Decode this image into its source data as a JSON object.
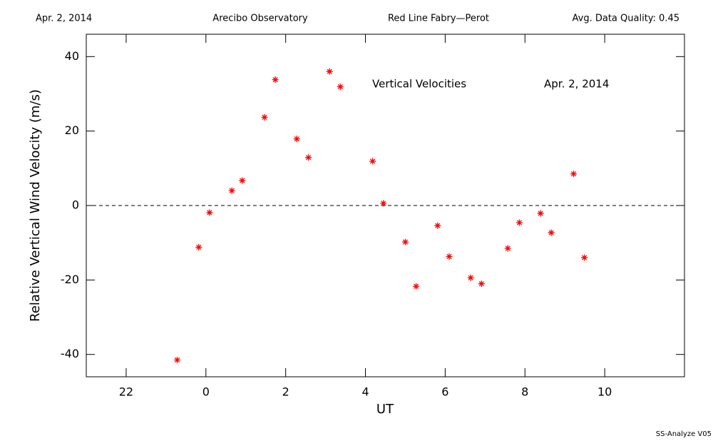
{
  "chart_data": {
    "type": "scatter",
    "header": [
      "Apr. 2, 2014",
      "Arecibo Observatory",
      "Red Line Fabry—Perot",
      "Avg. Data Quality: 0.45"
    ],
    "annotations": [
      "Vertical Velocities",
      "Apr. 2, 2014"
    ],
    "footer": "SS-Analyze V05",
    "xlabel": "UT",
    "ylabel": "Relative Vertical Wind Velocity (m/s)",
    "color": "#ff0000",
    "hline": 0,
    "x": [
      -0.72,
      -0.18,
      0.09,
      0.65,
      0.91,
      1.47,
      1.74,
      2.28,
      2.57,
      3.1,
      3.37,
      4.18,
      4.45,
      5.0,
      5.27,
      5.81,
      6.1,
      6.64,
      6.91,
      7.57,
      7.86,
      8.39,
      8.66,
      9.22,
      9.49
    ],
    "values": [
      -41.5,
      -11.2,
      -1.9,
      4.0,
      6.7,
      23.7,
      33.8,
      17.9,
      12.9,
      36.0,
      31.9,
      11.9,
      0.6,
      -9.8,
      -21.7,
      -5.4,
      -13.7,
      -19.4,
      -21.0,
      -11.5,
      -4.6,
      -2.1,
      -7.3,
      8.5,
      -14.0
    ],
    "xlim": [
      -3,
      12
    ],
    "xticks": [
      {
        "value": -2,
        "label": "22"
      },
      0,
      2,
      4,
      6,
      8,
      10
    ],
    "ylim": [
      -46,
      46
    ],
    "yticks": [
      -40,
      -20,
      0,
      20,
      40
    ]
  }
}
